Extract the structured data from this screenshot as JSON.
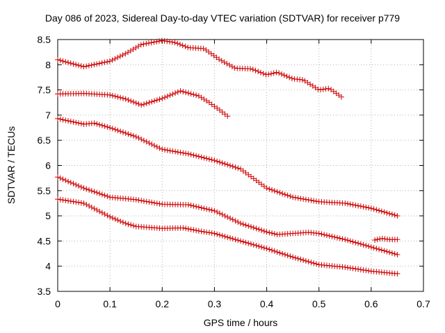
{
  "chart_data": {
    "type": "scatter",
    "title": "Day 086 of 2023, Sidereal Day-to-day VTEC variation (SDTVAR) for receiver p779",
    "xlabel": "GPS time / hours",
    "ylabel": "SDTVAR / TECUs",
    "xlim": [
      0,
      0.7
    ],
    "ylim": [
      3.5,
      8.5
    ],
    "xticks": [
      0,
      0.1,
      0.2,
      0.3,
      0.4,
      0.5,
      0.6,
      0.7
    ],
    "xtick_labels": [
      "0",
      "0.1",
      "0.2",
      "0.3",
      "0.4",
      "0.5",
      "0.6",
      "0.7"
    ],
    "yticks": [
      3.5,
      4,
      4.5,
      5,
      5.5,
      6,
      6.5,
      7,
      7.5,
      8,
      8.5
    ],
    "ytick_labels": [
      "3.5",
      "4",
      "4.5",
      "5",
      "5.5",
      "6",
      "6.5",
      "7",
      "7.5",
      "8",
      "8.5"
    ],
    "grid": true,
    "marker": "+",
    "marker_color": "#cc0000",
    "series": [
      {
        "name": "series-a",
        "x": [
          0,
          0.05,
          0.1,
          0.13,
          0.16,
          0.2,
          0.225,
          0.25,
          0.28,
          0.31,
          0.34,
          0.37,
          0.4,
          0.42,
          0.45,
          0.47,
          0.5,
          0.52,
          0.543
        ],
        "y": [
          8.1,
          7.96,
          8.07,
          8.22,
          8.4,
          8.48,
          8.44,
          8.34,
          8.32,
          8.1,
          7.93,
          7.92,
          7.8,
          7.85,
          7.72,
          7.7,
          7.5,
          7.53,
          7.36
        ]
      },
      {
        "name": "series-b",
        "x": [
          0,
          0.05,
          0.1,
          0.13,
          0.16,
          0.2,
          0.235,
          0.27,
          0.29,
          0.31,
          0.325
        ],
        "y": [
          7.42,
          7.43,
          7.4,
          7.32,
          7.2,
          7.33,
          7.48,
          7.38,
          7.25,
          7.1,
          6.98
        ]
      },
      {
        "name": "series-c",
        "x": [
          0,
          0.05,
          0.07,
          0.1,
          0.15,
          0.2,
          0.25,
          0.3,
          0.35,
          0.4,
          0.45,
          0.5,
          0.55,
          0.6,
          0.65
        ],
        "y": [
          6.93,
          6.82,
          6.84,
          6.75,
          6.57,
          6.32,
          6.23,
          6.1,
          5.93,
          5.55,
          5.37,
          5.28,
          5.25,
          5.15,
          5.0
        ]
      },
      {
        "name": "series-d",
        "x": [
          0,
          0.05,
          0.1,
          0.15,
          0.2,
          0.25,
          0.3,
          0.35,
          0.4,
          0.42,
          0.45,
          0.48,
          0.5,
          0.55,
          0.6,
          0.65
        ],
        "y": [
          5.77,
          5.55,
          5.37,
          5.32,
          5.23,
          5.22,
          5.1,
          4.85,
          4.68,
          4.63,
          4.65,
          4.67,
          4.65,
          4.53,
          4.38,
          4.23
        ]
      },
      {
        "name": "series-e",
        "x": [
          0,
          0.05,
          0.1,
          0.13,
          0.15,
          0.2,
          0.24,
          0.27,
          0.3,
          0.35,
          0.4,
          0.45,
          0.5,
          0.55,
          0.6,
          0.65
        ],
        "y": [
          5.33,
          5.25,
          4.98,
          4.85,
          4.79,
          4.75,
          4.76,
          4.7,
          4.65,
          4.5,
          4.35,
          4.18,
          4.03,
          3.98,
          3.9,
          3.85
        ]
      },
      {
        "name": "series-f",
        "x": [
          0.607,
          0.62,
          0.635,
          0.65
        ],
        "y": [
          4.52,
          4.55,
          4.53,
          4.53
        ]
      }
    ]
  }
}
